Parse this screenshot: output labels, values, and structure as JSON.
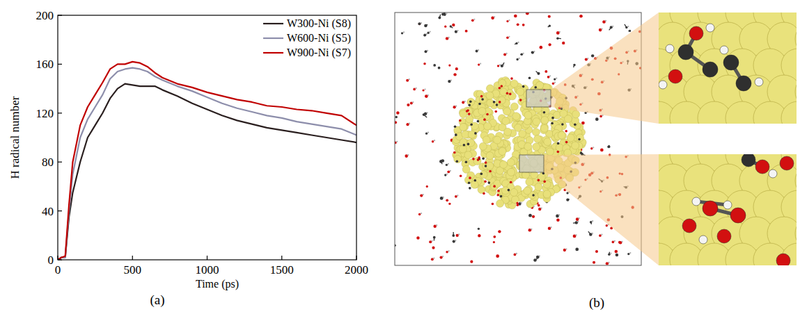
{
  "chart_data": {
    "type": "line",
    "x_label": "Time (ps)",
    "y_label": "H radical number",
    "annotations": [
      "(a)"
    ],
    "x": [
      0,
      25,
      50,
      75,
      100,
      150,
      200,
      250,
      300,
      350,
      400,
      450,
      500,
      550,
      600,
      650,
      700,
      800,
      900,
      1000,
      1100,
      1200,
      1300,
      1400,
      1500,
      1600,
      1700,
      1800,
      1900,
      2000
    ],
    "series": [
      {
        "name": "W300-Ni (S8)",
        "color": "#2a1f1f",
        "values": [
          0,
          2,
          2,
          35,
          55,
          80,
          100,
          110,
          120,
          132,
          140,
          144,
          143,
          142,
          142,
          142,
          139,
          134,
          128,
          123,
          118,
          114,
          111,
          108,
          106,
          104,
          102,
          100,
          98,
          96
        ]
      },
      {
        "name": "W600-Ni (S5)",
        "color": "#8d8eab",
        "values": [
          0,
          2,
          2,
          40,
          70,
          100,
          115,
          125,
          135,
          148,
          154,
          156,
          157,
          156,
          154,
          150,
          147,
          142,
          138,
          133,
          128,
          124,
          121,
          118,
          116,
          113,
          111,
          109,
          107,
          102
        ]
      },
      {
        "name": "W900-Ni (S7)",
        "color": "#c00000",
        "values": [
          0,
          2,
          3,
          45,
          80,
          110,
          125,
          135,
          145,
          156,
          160,
          160,
          162,
          161,
          158,
          153,
          149,
          144,
          141,
          137,
          134,
          131,
          129,
          126,
          125,
          123,
          122,
          120,
          118,
          110
        ]
      }
    ],
    "xlim": [
      0,
      2000
    ],
    "xticks": [
      0,
      500,
      1000,
      1500,
      2000
    ],
    "ylim": [
      0,
      200
    ],
    "yticks": [
      0,
      40,
      80,
      120,
      160,
      200
    ],
    "legend": "upper right",
    "grid": false
  },
  "image_panel": {
    "label": "(b)"
  }
}
